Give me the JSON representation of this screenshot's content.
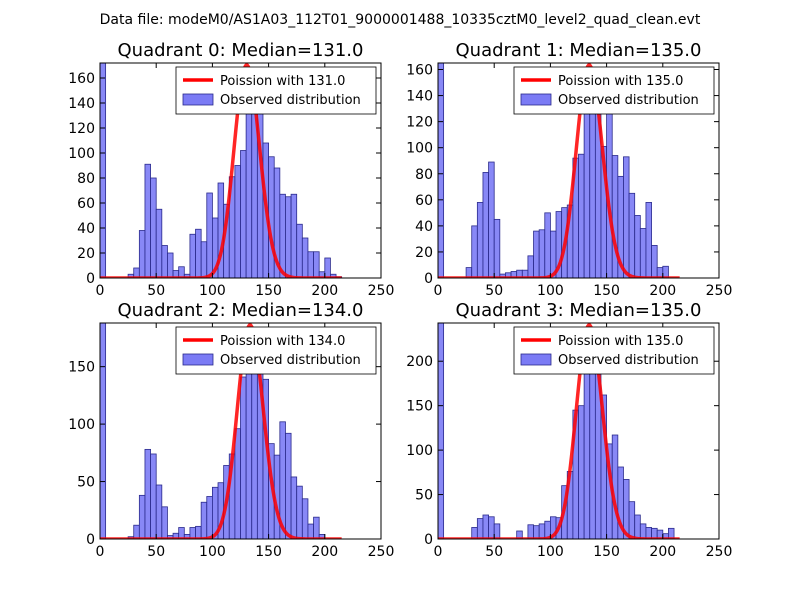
{
  "figure": {
    "suptitle": "Data file: modeM0/AS1A03_112T01_9000001488_10335cztM0_level2_quad_clean.evt"
  },
  "colors": {
    "hist_fill": "#7b7bf5",
    "hist_edge": "#2a2a8c",
    "poisson_line": "#ff0000"
  },
  "chart_data": [
    {
      "type": "bar",
      "quadrant": 0,
      "title": "Quadrant 0: Median=131.0",
      "xlim": [
        0,
        250
      ],
      "ylim": [
        0,
        172
      ],
      "xticks": [
        0,
        50,
        100,
        150,
        200,
        250
      ],
      "yticks": [
        0,
        20,
        40,
        60,
        80,
        100,
        120,
        140,
        160
      ],
      "bin_width": 5,
      "bins_start": [
        0,
        25,
        30,
        35,
        40,
        45,
        50,
        55,
        60,
        65,
        70,
        75,
        80,
        85,
        90,
        95,
        100,
        105,
        110,
        115,
        120,
        125,
        130,
        135,
        140,
        145,
        150,
        155,
        160,
        165,
        170,
        175,
        180,
        185,
        190,
        195,
        200,
        205,
        210
      ],
      "bin_counts": [
        172,
        3,
        8,
        38,
        91,
        80,
        55,
        26,
        20,
        6,
        9,
        3,
        35,
        39,
        29,
        68,
        48,
        76,
        59,
        81,
        90,
        102,
        156,
        152,
        135,
        108,
        97,
        88,
        67,
        65,
        67,
        43,
        32,
        21,
        21,
        5,
        16,
        3,
        1
      ],
      "poisson_mean": 131.0,
      "legend": [
        "Poission with 131.0",
        "Observed distribution"
      ]
    },
    {
      "type": "bar",
      "quadrant": 1,
      "title": "Quadrant 1: Median=135.0",
      "xlim": [
        0,
        250
      ],
      "ylim": [
        0,
        165
      ],
      "xticks": [
        0,
        50,
        100,
        150,
        200,
        250
      ],
      "yticks": [
        0,
        20,
        40,
        60,
        80,
        100,
        120,
        140,
        160
      ],
      "bin_width": 5,
      "bins_start": [
        0,
        25,
        30,
        35,
        40,
        45,
        50,
        55,
        60,
        65,
        70,
        75,
        80,
        85,
        90,
        95,
        100,
        105,
        110,
        115,
        120,
        125,
        130,
        135,
        140,
        145,
        150,
        155,
        160,
        165,
        170,
        175,
        180,
        185,
        190,
        195,
        200
      ],
      "bin_counts": [
        165,
        8,
        40,
        58,
        81,
        89,
        45,
        3,
        4,
        5,
        6,
        6,
        17,
        36,
        37,
        50,
        36,
        51,
        54,
        56,
        92,
        95,
        127,
        141,
        127,
        101,
        127,
        94,
        78,
        93,
        65,
        48,
        38,
        58,
        25,
        8,
        9
      ],
      "poisson_mean": 135.0,
      "legend": [
        "Poission with 135.0",
        "Observed distribution"
      ]
    },
    {
      "type": "bar",
      "quadrant": 2,
      "title": "Quadrant 2: Median=134.0",
      "xlim": [
        0,
        250
      ],
      "ylim": [
        0,
        188
      ],
      "xticks": [
        0,
        50,
        100,
        150,
        200,
        250
      ],
      "yticks": [
        0,
        50,
        100,
        150
      ],
      "bin_width": 5,
      "bins_start": [
        0,
        25,
        30,
        35,
        40,
        45,
        50,
        55,
        60,
        65,
        70,
        75,
        80,
        85,
        90,
        95,
        100,
        105,
        110,
        115,
        120,
        125,
        130,
        135,
        140,
        145,
        150,
        155,
        160,
        165,
        170,
        175,
        180,
        185,
        190,
        195
      ],
      "bin_counts": [
        188,
        2,
        12,
        38,
        78,
        74,
        47,
        28,
        3,
        5,
        10,
        4,
        10,
        11,
        32,
        37,
        45,
        49,
        64,
        74,
        96,
        141,
        158,
        172,
        145,
        139,
        83,
        73,
        102,
        92,
        54,
        46,
        35,
        13,
        19,
        4
      ],
      "poisson_mean": 134.0,
      "legend": [
        "Poission with 134.0",
        "Observed distribution"
      ]
    },
    {
      "type": "bar",
      "quadrant": 3,
      "title": "Quadrant 3: Median=135.0",
      "xlim": [
        0,
        250
      ],
      "ylim": [
        0,
        243
      ],
      "xticks": [
        0,
        50,
        100,
        150,
        200,
        250
      ],
      "yticks": [
        0,
        50,
        100,
        150,
        200
      ],
      "bin_width": 5,
      "bins_start": [
        0,
        30,
        35,
        40,
        45,
        50,
        70,
        80,
        85,
        90,
        95,
        100,
        105,
        110,
        115,
        120,
        125,
        130,
        135,
        140,
        145,
        150,
        155,
        160,
        165,
        170,
        175,
        180,
        185,
        190,
        195,
        200,
        205
      ],
      "bin_counts": [
        243,
        13,
        23,
        27,
        25,
        17,
        9,
        16,
        15,
        17,
        20,
        25,
        24,
        60,
        76,
        145,
        150,
        212,
        220,
        203,
        162,
        107,
        117,
        81,
        67,
        42,
        27,
        17,
        13,
        12,
        10,
        6,
        12
      ],
      "poisson_mean": 135.0,
      "legend": [
        "Poission with 135.0",
        "Observed distribution"
      ]
    }
  ]
}
